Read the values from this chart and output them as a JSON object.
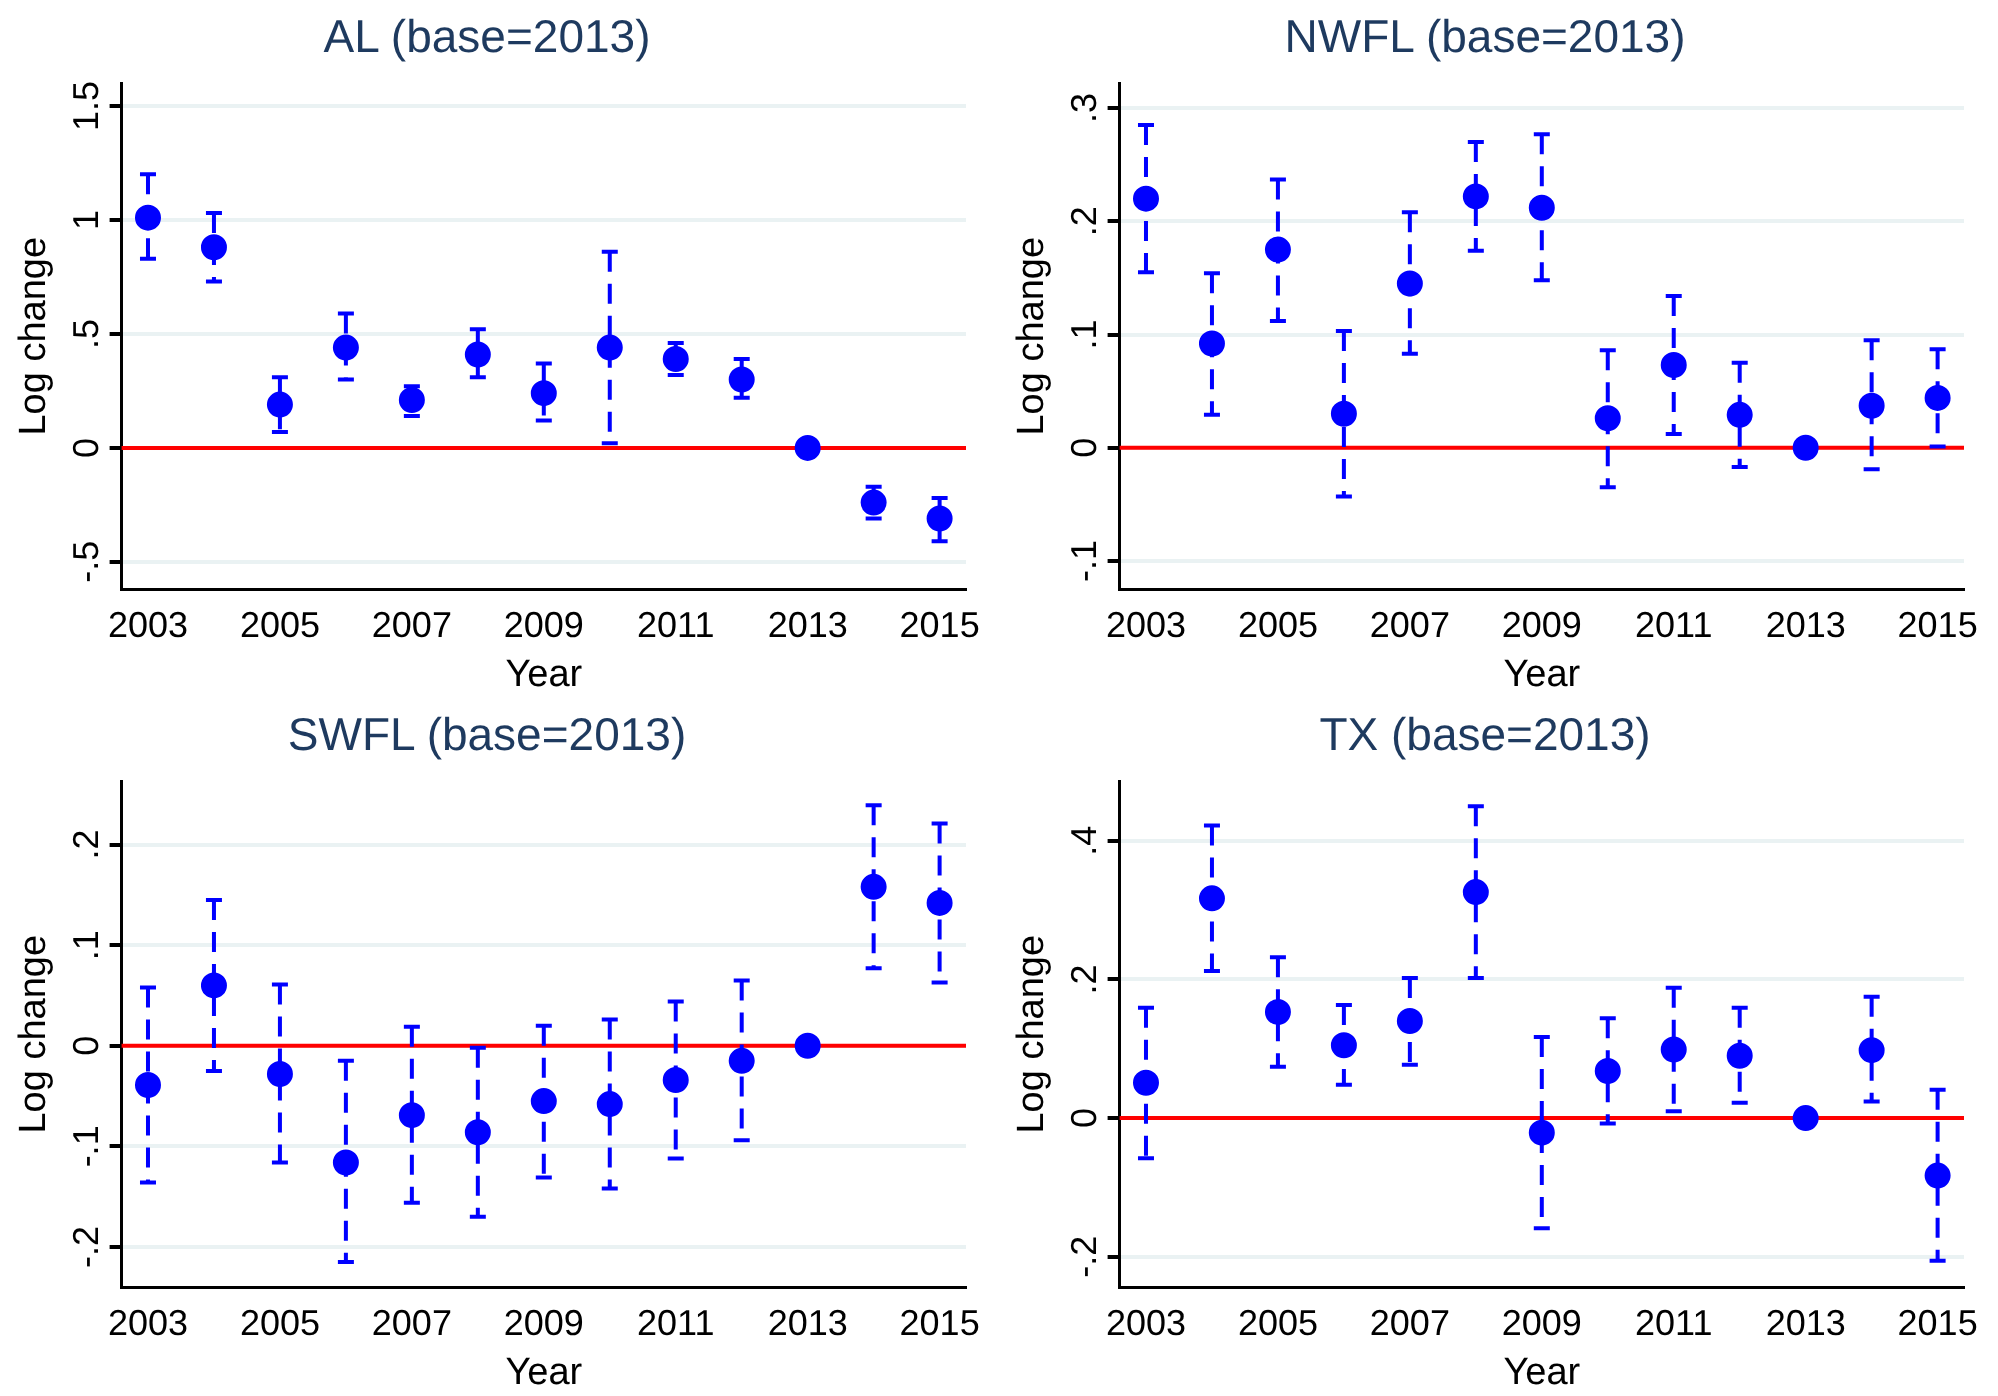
{
  "chart_data": [
    {
      "type": "scatter",
      "title": "AL (base=2013)",
      "xlabel": "Year",
      "ylabel": "Log change",
      "color": "#0000ff",
      "marker": "circle",
      "grid": "y",
      "x": [
        2003,
        2004,
        2005,
        2006,
        2007,
        2008,
        2009,
        2010,
        2011,
        2012,
        2013,
        2014,
        2015
      ],
      "values": [
        1.01,
        0.88,
        0.19,
        0.44,
        0.21,
        0.41,
        0.24,
        0.44,
        0.39,
        0.3,
        0,
        -0.24,
        -0.31
      ],
      "errors": [
        [
          0.83,
          1.2
        ],
        [
          0.73,
          1.03
        ],
        [
          0.07,
          0.31
        ],
        [
          0.3,
          0.59
        ],
        [
          0.14,
          0.27
        ],
        [
          0.31,
          0.52
        ],
        [
          0.12,
          0.37
        ],
        [
          0.02,
          0.86
        ],
        [
          0.32,
          0.46
        ],
        [
          0.22,
          0.39
        ],
        null,
        [
          -0.31,
          -0.17
        ],
        [
          -0.41,
          -0.22
        ]
      ],
      "xlim": [
        2002.6,
        2015.4
      ],
      "xticks": [
        2003,
        2005,
        2007,
        2009,
        2011,
        2013,
        2015
      ],
      "ylim": [
        -0.62,
        1.6
      ],
      "yticks": [
        {
          "value": -0.5,
          "label": "-.5"
        },
        0,
        {
          "value": 0.5,
          "label": ".5"
        },
        1,
        1.5
      ],
      "ref_lines": [
        {
          "axis": "y",
          "value": 0,
          "color": "#ff0000"
        }
      ]
    },
    {
      "type": "scatter",
      "title": "NWFL (base=2013)",
      "xlabel": "Year",
      "ylabel": "Log change",
      "color": "#0000ff",
      "marker": "circle",
      "grid": "y",
      "x": [
        2003,
        2004,
        2005,
        2006,
        2007,
        2008,
        2009,
        2010,
        2011,
        2012,
        2013,
        2014,
        2015
      ],
      "values": [
        0.22,
        0.092,
        0.175,
        0.03,
        0.145,
        0.222,
        0.212,
        0.026,
        0.073,
        0.029,
        0,
        0.037,
        0.044
      ],
      "errors": [
        [
          0.155,
          0.285
        ],
        [
          0.029,
          0.154
        ],
        [
          0.112,
          0.237
        ],
        [
          -0.043,
          0.103
        ],
        [
          0.083,
          0.208
        ],
        [
          0.174,
          0.27
        ],
        [
          0.148,
          0.277
        ],
        [
          -0.035,
          0.086
        ],
        [
          0.012,
          0.134
        ],
        [
          -0.017,
          0.075
        ],
        null,
        [
          -0.019,
          0.095
        ],
        [
          0.001,
          0.087
        ]
      ],
      "xlim": [
        2002.6,
        2015.4
      ],
      "xticks": [
        2003,
        2005,
        2007,
        2009,
        2011,
        2013,
        2015
      ],
      "ylim": [
        -0.125,
        0.322
      ],
      "yticks": [
        {
          "value": -0.1,
          "label": "-.1"
        },
        0,
        {
          "value": 0.1,
          "label": ".1"
        },
        {
          "value": 0.2,
          "label": ".2"
        },
        {
          "value": 0.3,
          "label": ".3"
        }
      ],
      "ref_lines": [
        {
          "axis": "y",
          "value": 0,
          "color": "#ff0000"
        }
      ]
    },
    {
      "type": "scatter",
      "title": "SWFL (base=2013)",
      "xlabel": "Year",
      "ylabel": "Log change",
      "color": "#0000ff",
      "marker": "circle",
      "grid": "y",
      "x": [
        2003,
        2004,
        2005,
        2006,
        2007,
        2008,
        2009,
        2010,
        2011,
        2012,
        2013,
        2014,
        2015
      ],
      "values": [
        -0.039,
        0.06,
        -0.028,
        -0.116,
        -0.069,
        -0.086,
        -0.055,
        -0.058,
        -0.034,
        -0.015,
        0,
        0.158,
        0.142
      ],
      "errors": [
        [
          -0.136,
          0.058
        ],
        [
          -0.025,
          0.145
        ],
        [
          -0.116,
          0.061
        ],
        [
          -0.215,
          -0.015
        ],
        [
          -0.156,
          0.019
        ],
        [
          -0.17,
          -0.002
        ],
        [
          -0.131,
          0.02
        ],
        [
          -0.142,
          0.026
        ],
        [
          -0.112,
          0.044
        ],
        [
          -0.094,
          0.065
        ],
        null,
        [
          0.077,
          0.239
        ],
        [
          0.063,
          0.221
        ]
      ],
      "xlim": [
        2002.6,
        2015.4
      ],
      "xticks": [
        2003,
        2005,
        2007,
        2009,
        2011,
        2013,
        2015
      ],
      "ylim": [
        -0.24,
        0.263
      ],
      "yticks": [
        {
          "value": -0.2,
          "label": "-.2"
        },
        {
          "value": -0.1,
          "label": "-.1"
        },
        0,
        {
          "value": 0.1,
          "label": ".1"
        },
        {
          "value": 0.2,
          "label": ".2"
        }
      ],
      "ref_lines": [
        {
          "axis": "y",
          "value": 0,
          "color": "#ff0000"
        }
      ]
    },
    {
      "type": "scatter",
      "title": "TX (base=2013)",
      "xlabel": "Year",
      "ylabel": "Log change",
      "color": "#0000ff",
      "marker": "circle",
      "grid": "y",
      "x": [
        2003,
        2004,
        2005,
        2006,
        2007,
        2008,
        2009,
        2010,
        2011,
        2012,
        2013,
        2014,
        2015
      ],
      "values": [
        0.051,
        0.317,
        0.153,
        0.105,
        0.14,
        0.326,
        -0.021,
        0.068,
        0.099,
        0.09,
        0,
        0.098,
        -0.083
      ],
      "errors": [
        [
          -0.058,
          0.159
        ],
        [
          0.212,
          0.422
        ],
        [
          0.074,
          0.232
        ],
        [
          0.048,
          0.163
        ],
        [
          0.077,
          0.202
        ],
        [
          0.202,
          0.45
        ],
        [
          -0.159,
          0.117
        ],
        [
          -0.008,
          0.144
        ],
        [
          0.01,
          0.188
        ],
        [
          0.022,
          0.159
        ],
        null,
        [
          0.024,
          0.175
        ],
        [
          -0.206,
          0.041
        ]
      ],
      "xlim": [
        2002.6,
        2015.4
      ],
      "xticks": [
        2003,
        2005,
        2007,
        2009,
        2011,
        2013,
        2015
      ],
      "ylim": [
        -0.244,
        0.486
      ],
      "yticks": [
        {
          "value": -0.2,
          "label": "-.2"
        },
        0,
        {
          "value": 0.2,
          "label": ".2"
        },
        {
          "value": 0.4,
          "label": ".4"
        }
      ],
      "ref_lines": [
        {
          "axis": "y",
          "value": 0,
          "color": "#ff0000"
        }
      ]
    }
  ]
}
